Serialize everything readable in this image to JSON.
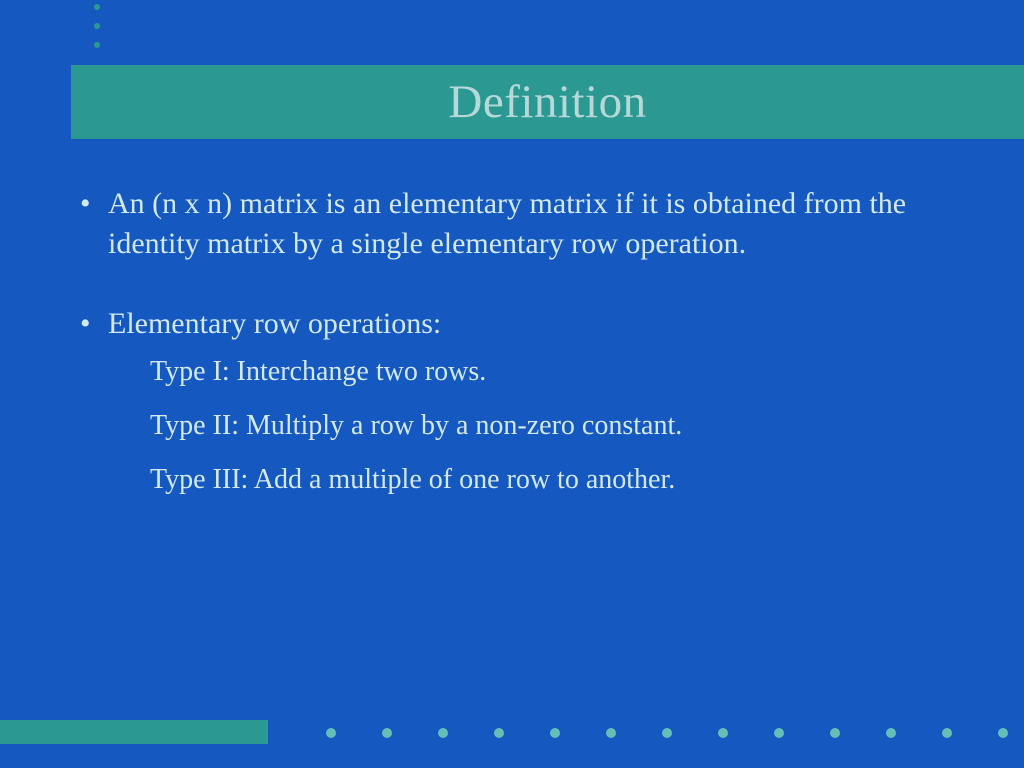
{
  "colors": {
    "background": "#1558c0",
    "accent": "#2b9992",
    "title_text": "#b5d9d8",
    "body_text": "#d2e9f2",
    "bottom_dot": "#65bdb7"
  },
  "decor": {
    "top_dot_count": 3,
    "bottom_dot_count": 13
  },
  "title": "Definition",
  "bullets": [
    {
      "text": "An (n x n) matrix is an elementary matrix if it is obtained from  the identity matrix by a single elementary row operation."
    },
    {
      "text": "Elementary row operations:",
      "sub": [
        "Type I:  Interchange two rows.",
        "Type II: Multiply a row by a non-zero constant.",
        "Type III:  Add a multiple of one row to another."
      ]
    }
  ]
}
